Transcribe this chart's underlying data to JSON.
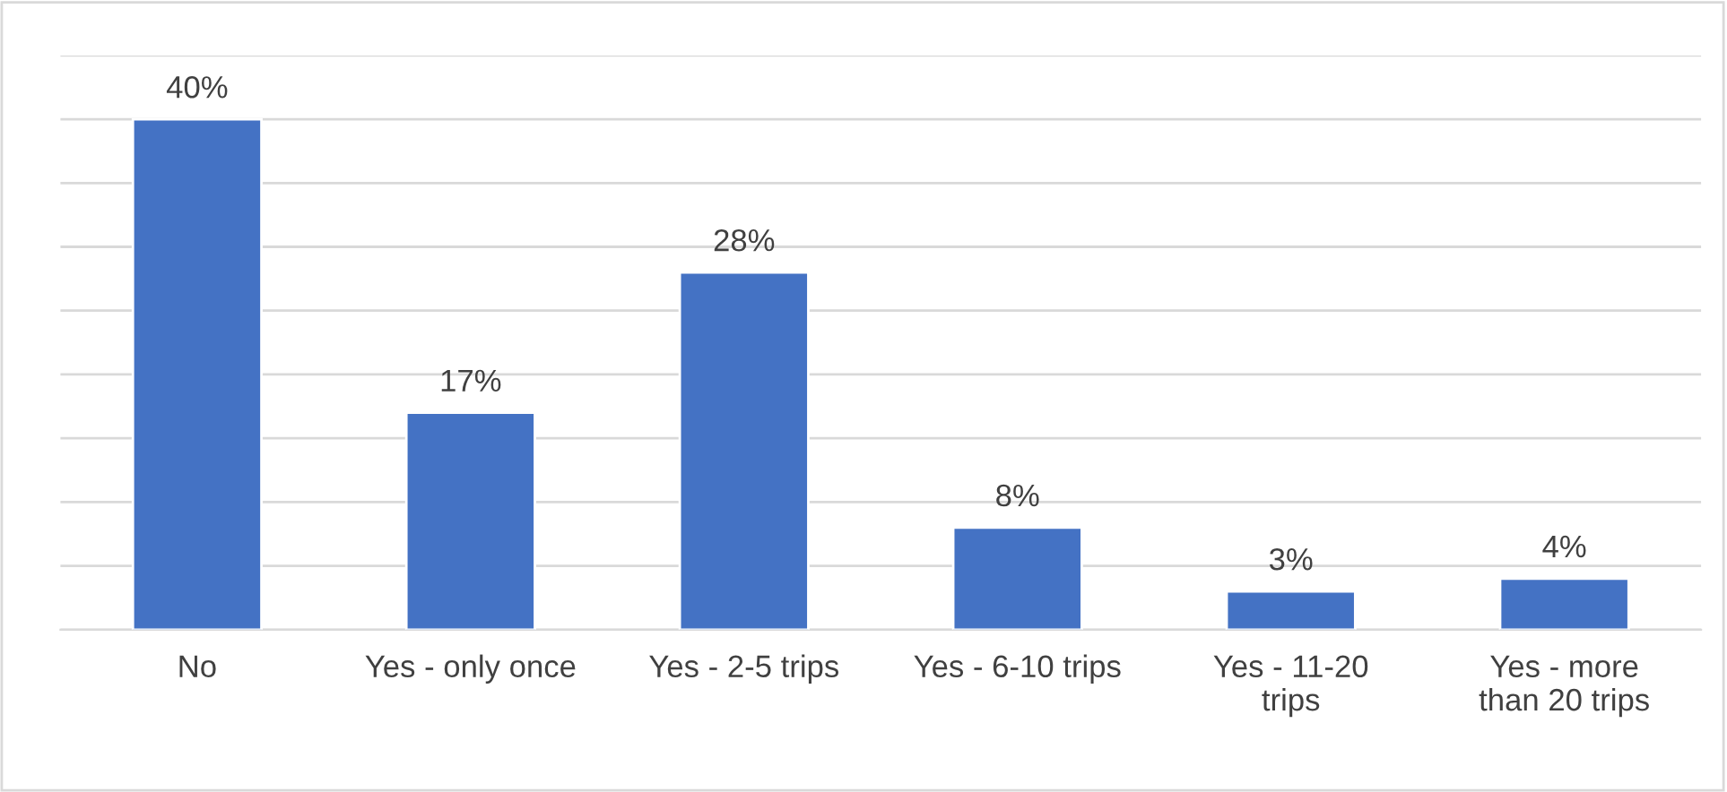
{
  "chart_data": {
    "type": "bar",
    "categories": [
      "No",
      "Yes - only once",
      "Yes - 2-5 trips",
      "Yes - 6-10 trips",
      "Yes - 11-20\ntrips",
      "Yes - more\nthan 20 trips"
    ],
    "values": [
      40,
      17,
      28,
      8,
      3,
      4
    ],
    "value_labels": [
      "40%",
      "17%",
      "28%",
      "8%",
      "3%",
      "4%"
    ],
    "color": "#4472c4",
    "ylim": [
      0,
      45
    ],
    "yticks": [
      {
        "value": 0,
        "label": null
      },
      {
        "value": 5,
        "label": null
      },
      {
        "value": 10,
        "label": null
      },
      {
        "value": 15,
        "label": null
      },
      {
        "value": 20,
        "label": null
      },
      {
        "value": 25,
        "label": null
      },
      {
        "value": 30,
        "label": null
      },
      {
        "value": 35,
        "label": null
      },
      {
        "value": 40,
        "label": null
      },
      {
        "value": 45,
        "label": null
      }
    ],
    "grid": "y",
    "tick_labels": "x"
  }
}
